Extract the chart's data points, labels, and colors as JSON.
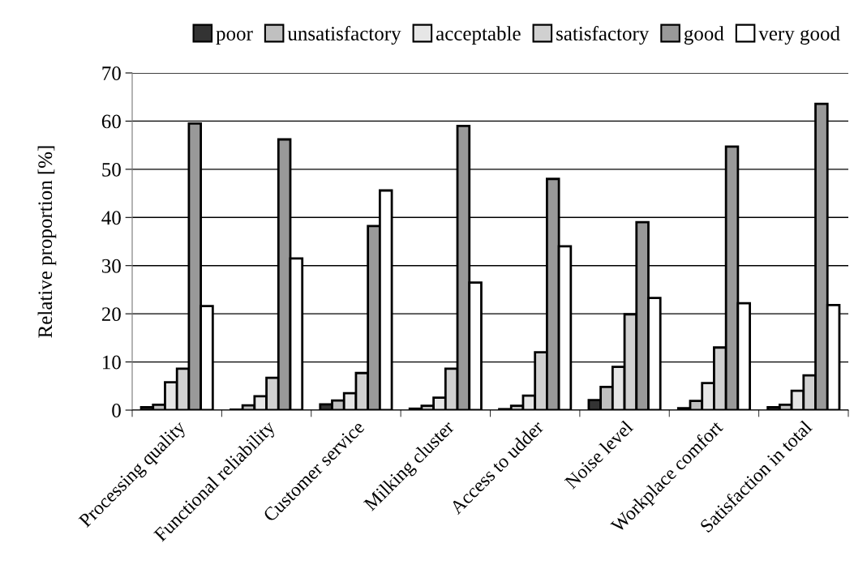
{
  "chart_data": {
    "type": "bar",
    "ylabel": "Relative proportion [%]",
    "categories": [
      "Processing quality",
      "Functional reliability",
      "Customer service",
      "Milking cluster",
      "Access to udder",
      "Noise level",
      "Workplace comfort",
      "Satisfaction in total"
    ],
    "series": [
      {
        "name": "poor",
        "color": "#333333",
        "values": [
          0.6,
          0.1,
          1.2,
          0.3,
          0.2,
          2.1,
          0.4,
          0.6
        ]
      },
      {
        "name": "unsatisfactory",
        "color": "#c0c0c0",
        "values": [
          1.1,
          1.0,
          2.0,
          0.9,
          0.9,
          4.8,
          1.9,
          1.1
        ]
      },
      {
        "name": "acceptable",
        "color": "#e6e6e6",
        "values": [
          5.8,
          2.9,
          3.5,
          2.6,
          3.0,
          9.0,
          5.6,
          4.0
        ]
      },
      {
        "name": "satisfactory",
        "color": "#d0d0d0",
        "values": [
          8.6,
          6.7,
          7.7,
          8.6,
          12.0,
          19.9,
          13.0,
          7.2
        ]
      },
      {
        "name": "good",
        "color": "#999999",
        "values": [
          59.5,
          56.2,
          38.2,
          59.0,
          48.0,
          39.0,
          54.7,
          63.6
        ]
      },
      {
        "name": "very good",
        "color": "#ffffff",
        "values": [
          21.6,
          31.5,
          45.6,
          26.5,
          34.0,
          23.3,
          22.2,
          21.8
        ]
      }
    ],
    "ylim": [
      0,
      70
    ],
    "yticks": [
      0,
      10,
      20,
      30,
      40,
      50,
      60,
      70
    ],
    "grid": "y",
    "legend": "top right"
  }
}
